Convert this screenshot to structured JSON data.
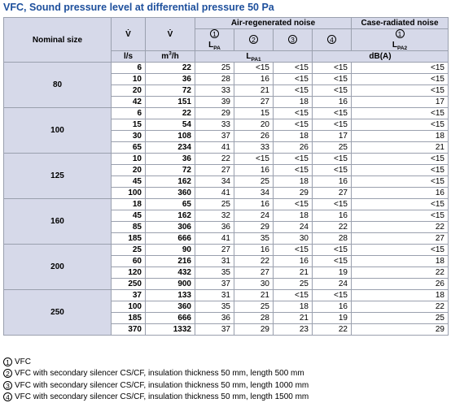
{
  "title": "VFC, Sound pressure level at differential pressure 50 Pa",
  "header": {
    "nominal_size": "Nominal size",
    "vdot": "V̇",
    "air_noise": "Air-regenerated noise",
    "case_noise": "Case-radiated noise",
    "circles": [
      "1",
      "2",
      "3",
      "4",
      "1"
    ],
    "lpa_base": "L",
    "lpa_sub": "PA",
    "lpa1_sub": "PA1",
    "lpa2_sub": "PA2",
    "unit_ls": "l/s",
    "unit_m3h_base": "m",
    "unit_m3h_sup": "3",
    "unit_m3h_tail": "/h",
    "unit_db": "dB(A)"
  },
  "groups": [
    {
      "size": "80",
      "rows": [
        [
          "6",
          "22",
          "25",
          "<15",
          "<15",
          "<15",
          "<15"
        ],
        [
          "10",
          "36",
          "28",
          "16",
          "<15",
          "<15",
          "<15"
        ],
        [
          "20",
          "72",
          "33",
          "21",
          "<15",
          "<15",
          "<15"
        ],
        [
          "42",
          "151",
          "39",
          "27",
          "18",
          "16",
          "17"
        ]
      ]
    },
    {
      "size": "100",
      "rows": [
        [
          "6",
          "22",
          "29",
          "15",
          "<15",
          "<15",
          "<15"
        ],
        [
          "15",
          "54",
          "33",
          "20",
          "<15",
          "<15",
          "<15"
        ],
        [
          "30",
          "108",
          "37",
          "26",
          "18",
          "17",
          "18"
        ],
        [
          "65",
          "234",
          "41",
          "33",
          "26",
          "25",
          "21"
        ]
      ]
    },
    {
      "size": "125",
      "rows": [
        [
          "10",
          "36",
          "22",
          "<15",
          "<15",
          "<15",
          "<15"
        ],
        [
          "20",
          "72",
          "27",
          "16",
          "<15",
          "<15",
          "<15"
        ],
        [
          "45",
          "162",
          "34",
          "25",
          "18",
          "16",
          "<15"
        ],
        [
          "100",
          "360",
          "41",
          "34",
          "29",
          "27",
          "16"
        ]
      ]
    },
    {
      "size": "160",
      "rows": [
        [
          "18",
          "65",
          "25",
          "16",
          "<15",
          "<15",
          "<15"
        ],
        [
          "45",
          "162",
          "32",
          "24",
          "18",
          "16",
          "<15"
        ],
        [
          "85",
          "306",
          "36",
          "29",
          "24",
          "22",
          "22"
        ],
        [
          "185",
          "666",
          "41",
          "35",
          "30",
          "28",
          "27"
        ]
      ]
    },
    {
      "size": "200",
      "rows": [
        [
          "25",
          "90",
          "27",
          "16",
          "<15",
          "<15",
          "<15"
        ],
        [
          "60",
          "216",
          "31",
          "22",
          "16",
          "<15",
          "18"
        ],
        [
          "120",
          "432",
          "35",
          "27",
          "21",
          "19",
          "22"
        ],
        [
          "250",
          "900",
          "37",
          "30",
          "25",
          "24",
          "26"
        ]
      ]
    },
    {
      "size": "250",
      "rows": [
        [
          "37",
          "133",
          "31",
          "21",
          "<15",
          "<15",
          "18"
        ],
        [
          "100",
          "360",
          "35",
          "25",
          "18",
          "16",
          "22"
        ],
        [
          "185",
          "666",
          "36",
          "28",
          "21",
          "19",
          "25"
        ],
        [
          "370",
          "1332",
          "37",
          "29",
          "23",
          "22",
          "29"
        ]
      ]
    }
  ],
  "footnotes": [
    {
      "num": "1",
      "text": "VFC"
    },
    {
      "num": "2",
      "text": "VFC with secondary silencer CS/CF, insulation thickness 50 mm, length 500 mm"
    },
    {
      "num": "3",
      "text": "VFC with secondary silencer CS/CF, insulation thickness 50 mm, length 1000 mm"
    },
    {
      "num": "4",
      "text": "VFC with secondary silencer CS/CF, insulation thickness 50 mm, length 1500 mm"
    }
  ]
}
